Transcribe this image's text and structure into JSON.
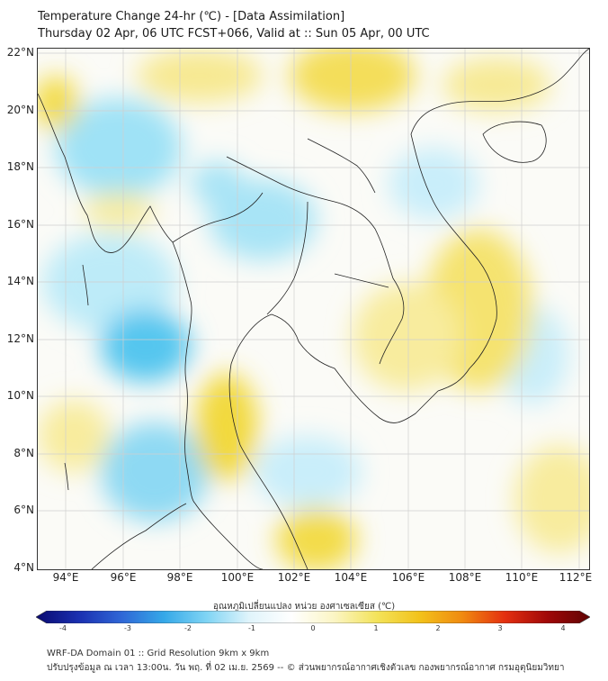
{
  "title": {
    "line1": "Temperature Change 24-hr (℃) - [Data Assimilation]",
    "line2": "Thursday 02 Apr, 06 UTC FCST+066, Valid at :: Sun 05 Apr, 00 UTC"
  },
  "map": {
    "projection": "lat-lon",
    "lon_range": [
      93.0,
      112.8
    ],
    "lat_range": [
      4.0,
      22.2
    ],
    "lat_labels": [
      "22°N",
      "20°N",
      "18°N",
      "16°N",
      "14°N",
      "12°N",
      "10°N",
      "8°N",
      "6°N",
      "4°N"
    ],
    "lon_labels": [
      "94°E",
      "96°E",
      "98°E",
      "100°E",
      "102°E",
      "104°E",
      "106°E",
      "108°E",
      "110°E",
      "112°E"
    ],
    "grid": true
  },
  "colorbar": {
    "title": "อุณหภูมิเปลี่ยนแปลง หน่วย องศาเซลเซียส (℃)",
    "range": [
      -4,
      4
    ],
    "tick_labels": [
      "-4",
      "-3",
      "-2",
      "-1",
      "0",
      "1",
      "2",
      "3",
      "4"
    ],
    "colors": [
      "#0a0a70",
      "#1a2fb0",
      "#2f66d6",
      "#35a8e8",
      "#7fd4f4",
      "#e0f4fb",
      "#ffffff",
      "#fbf5c4",
      "#f3e35a",
      "#f2c21a",
      "#f08a10",
      "#e43010",
      "#a00808",
      "#600404"
    ]
  },
  "footer": {
    "line1": "WRF-DA Domain 01 :: Grid Resolution 9km x 9km",
    "line2": "ปรับปรุงข้อมูล ณ เวลา 13:00น. วัน พฤ. ที่ 02 เม.ย. 2569 -- © ส่วนพยากรณ์อากาศเชิงตัวเลข กองพยากรณ์อากาศ กรมอุตุนิยมวิทยา"
  }
}
